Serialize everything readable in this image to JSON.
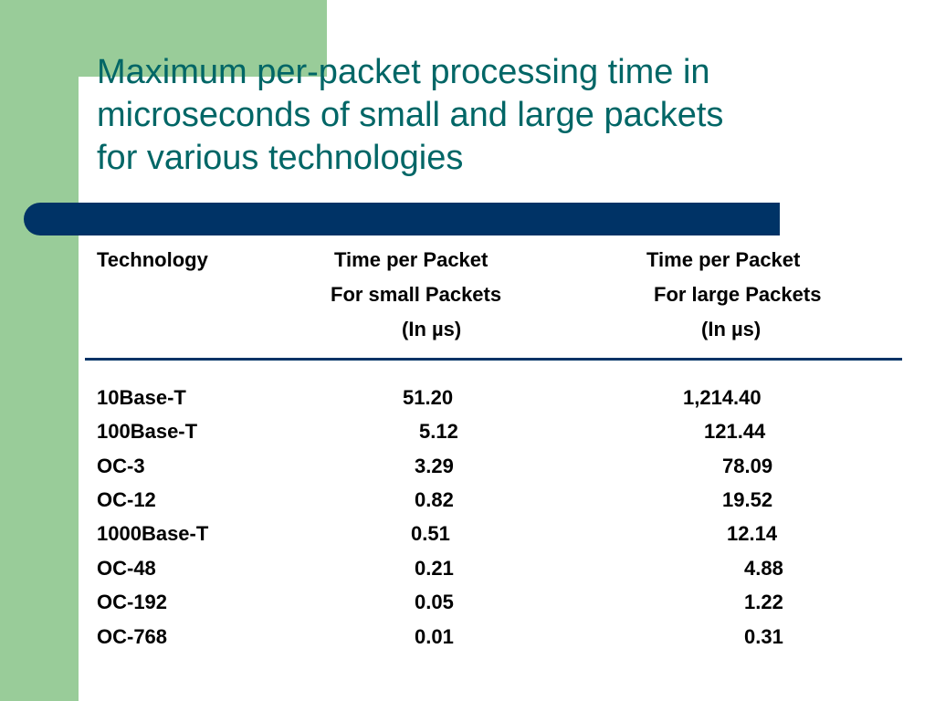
{
  "title_lines": [
    "Maximum per-packet processing time in",
    "microseconds of small and large packets",
    "for various technologies"
  ],
  "table": {
    "headers": {
      "technology": "Technology",
      "small": [
        "Time per Packet",
        "For small Packets",
        "(In µs)"
      ],
      "large": [
        "Time per Packet",
        "For large Packets",
        "(In µs)"
      ]
    },
    "rows": [
      {
        "technology": "10Base-T",
        "small": "51.20",
        "large": "1,214.40"
      },
      {
        "technology": "100Base-T",
        "small": "5.12",
        "large": "121.44"
      },
      {
        "technology": "OC-3",
        "small": "3.29",
        "large": "78.09"
      },
      {
        "technology": "OC-12",
        "small": "0.82",
        "large": "19.52"
      },
      {
        "technology": "1000Base-T",
        "small": "0.51",
        "large": "12.14"
      },
      {
        "technology": "OC-48",
        "small": "0.21",
        "large": "4.88"
      },
      {
        "technology": "OC-192",
        "small": "0.05",
        "large": "1.22"
      },
      {
        "technology": "OC-768",
        "small": "0.01",
        "large": "0.31"
      }
    ]
  },
  "colors": {
    "title": "#006666",
    "accent_green": "#99cc99",
    "navy_bar": "#003366"
  }
}
